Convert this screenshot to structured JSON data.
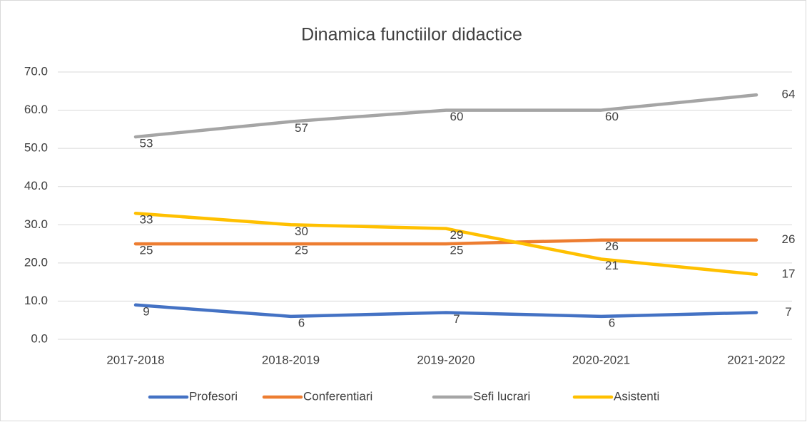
{
  "chart_data": {
    "type": "line",
    "title": "Dinamica functiilor didactice",
    "categories": [
      "2017-2018",
      "2018-2019",
      "2019-2020",
      "2020-2021",
      "2021-2022"
    ],
    "series": [
      {
        "name": "Profesori",
        "color": "#4472c4",
        "values": [
          9,
          6,
          7,
          6,
          7
        ]
      },
      {
        "name": "Conferentiari",
        "color": "#ed7d31",
        "values": [
          25,
          25,
          25,
          26,
          26
        ]
      },
      {
        "name": "Sefi lucrari",
        "color": "#a5a5a5",
        "values": [
          53,
          57,
          60,
          60,
          64
        ]
      },
      {
        "name": "Asistenti",
        "color": "#ffc000",
        "values": [
          33,
          30,
          29,
          21,
          17
        ]
      }
    ],
    "ylim": [
      0,
      70
    ],
    "yticks": [
      {
        "value": 0,
        "label": "0.0"
      },
      {
        "value": 10,
        "label": "10.0"
      },
      {
        "value": 20,
        "label": "20.0"
      },
      {
        "value": 30,
        "label": "30.0"
      },
      {
        "value": 40,
        "label": "40.0"
      },
      {
        "value": 50,
        "label": "50.0"
      },
      {
        "value": 60,
        "label": "60.0"
      },
      {
        "value": 70,
        "label": "70.0"
      }
    ],
    "grid": true,
    "legend": "bottom"
  }
}
